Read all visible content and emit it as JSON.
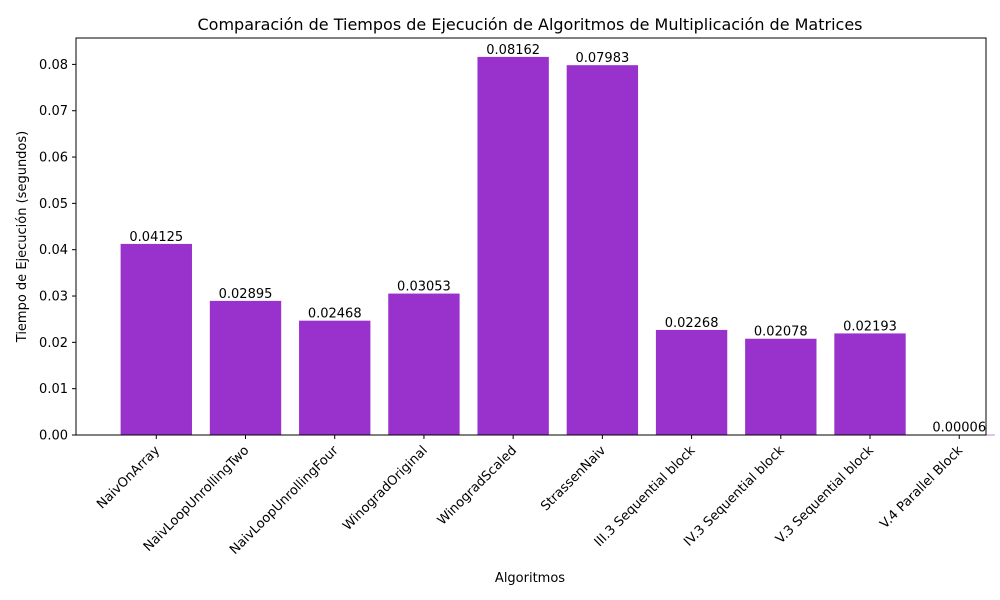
{
  "chart_data": {
    "type": "bar",
    "title": "Comparación de Tiempos de Ejecución de Algoritmos de Multiplicación de Matrices",
    "xlabel": "Algoritmos",
    "ylabel": "Tiempo de Ejecución (segundos)",
    "categories": [
      "NaivOnArray",
      "NaivLoopUnrollingTwo",
      "NaivLoopUnrollingFour",
      "WinogradOriginal",
      "WinogradScaled",
      "StrassenNaiv",
      "III.3 Sequential block",
      "IV.3 Sequential block",
      "V.3 Sequential block",
      "V.4 Parallel Block"
    ],
    "values": [
      0.04125,
      0.02895,
      0.02468,
      0.03053,
      0.08162,
      0.07983,
      0.02268,
      0.02078,
      0.02193,
      6e-05
    ],
    "data_labels": [
      "0.04125",
      "0.02895",
      "0.02468",
      "0.03053",
      "0.08162",
      "0.07983",
      "0.02268",
      "0.02078",
      "0.02193",
      "0.00006"
    ],
    "yticks": [
      0.0,
      0.01,
      0.02,
      0.03,
      0.04,
      0.05,
      0.06,
      0.07,
      0.08
    ],
    "ytick_labels": [
      "0.00",
      "0.01",
      "0.02",
      "0.03",
      "0.04",
      "0.05",
      "0.06",
      "0.07",
      "0.08"
    ],
    "ylim": [
      0,
      0.0857
    ],
    "bar_color": "#9932CC",
    "grid": false,
    "legend": "none"
  }
}
